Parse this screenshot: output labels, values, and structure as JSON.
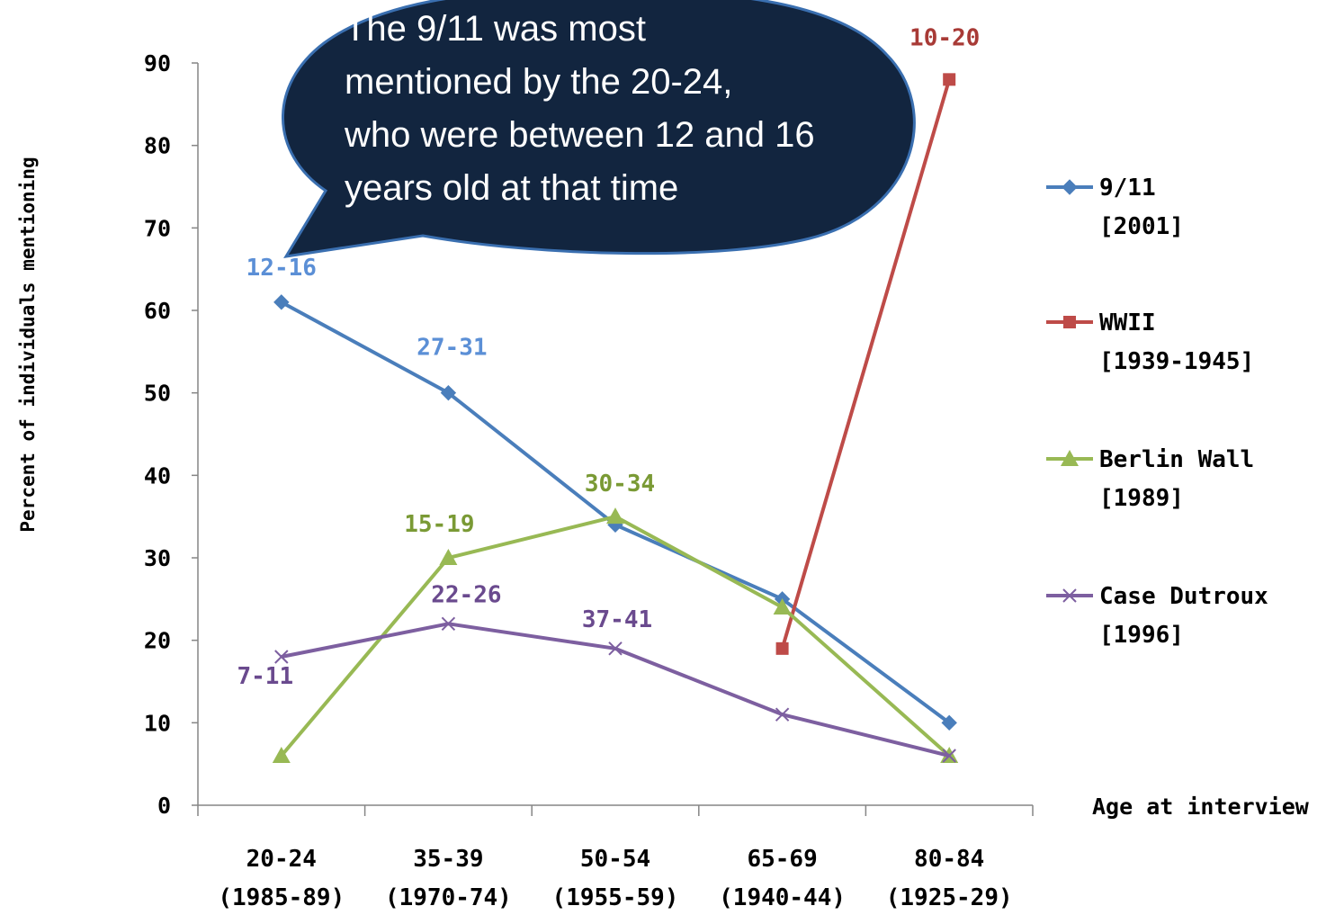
{
  "chart_data": {
    "type": "line",
    "title": "",
    "ylabel": "Percent of individuals mentioning",
    "xlabel": "Age at interview",
    "ylim": [
      0,
      90
    ],
    "yticks": [
      "0",
      "10",
      "20",
      "30",
      "40",
      "50",
      "60",
      "70",
      "80",
      "90"
    ],
    "categories": [
      {
        "line1": "20-24",
        "line2": "(1985-89)"
      },
      {
        "line1": "35-39",
        "line2": "(1970-74)"
      },
      {
        "line1": "50-54",
        "line2": "(1955-59)"
      },
      {
        "line1": "65-69",
        "line2": "(1940-44)"
      },
      {
        "line1": "80-84",
        "line2": "(1925-29)"
      }
    ],
    "grid": false,
    "legend_position": "right",
    "series": [
      {
        "name": "9/11",
        "name_sub": "[2001]",
        "color": "#4a7ebb",
        "marker": "diamond",
        "values": [
          61,
          50,
          34,
          25,
          10
        ],
        "point_labels": [
          {
            "index": 0,
            "text": "12-16"
          },
          {
            "index": 1,
            "text": "27-31"
          }
        ],
        "label_color": "#5b8fd6"
      },
      {
        "name": "WWII",
        "name_sub": "[1939-1945]",
        "color": "#be4b48",
        "marker": "square",
        "values": [
          null,
          null,
          null,
          19,
          88
        ],
        "point_labels": [
          {
            "index": 4,
            "text": "10-20"
          }
        ],
        "label_color": "#a83a36"
      },
      {
        "name": "Berlin Wall",
        "name_sub": "[1989]",
        "color": "#98b954",
        "marker": "triangle",
        "values": [
          6,
          30,
          35,
          24,
          6
        ],
        "point_labels": [
          {
            "index": 1,
            "text": "15-19"
          },
          {
            "index": 2,
            "text": "30-34"
          }
        ],
        "label_color": "#7a9a35"
      },
      {
        "name": "Case Dutroux",
        "name_sub": "[1996]",
        "color": "#7d5fa0",
        "marker": "x",
        "values": [
          18,
          22,
          19,
          11,
          6
        ],
        "point_labels": [
          {
            "index": 0,
            "text": "7-11"
          },
          {
            "index": 1,
            "text": "22-26"
          },
          {
            "index": 2,
            "text": "37-41"
          }
        ],
        "label_color": "#6a4a8e"
      }
    ],
    "annotation": {
      "lines": [
        "The 9/11 was most",
        "mentioned by the 20-24,",
        "who were between 12 and 16",
        "years old at that time"
      ],
      "fill": "#12253f",
      "border": "#3a6fb0"
    }
  }
}
